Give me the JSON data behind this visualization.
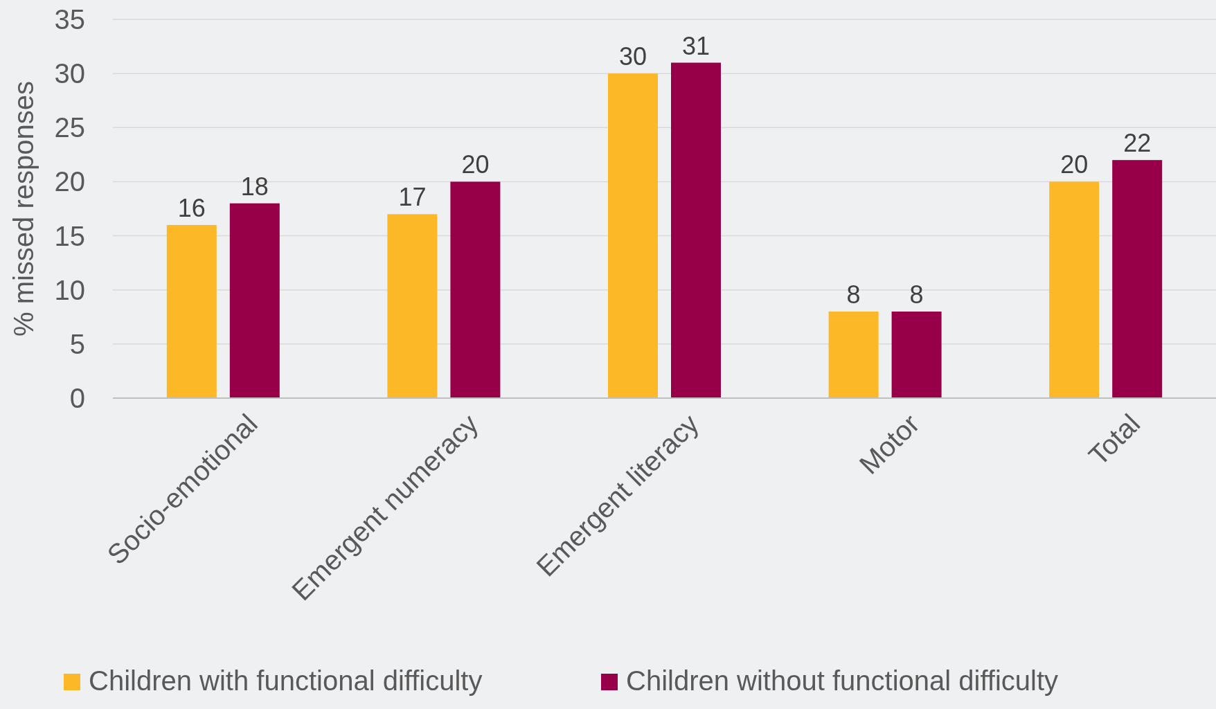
{
  "chart_data": {
    "type": "bar",
    "ylabel": "% missed responses",
    "categories": [
      "Socio-emotional",
      "Emergent numeracy",
      "Emergent literacy",
      "Motor",
      "Total"
    ],
    "series": [
      {
        "name": "Children with functional difficulty",
        "color": "#fdb827",
        "values": [
          16,
          17,
          30,
          8,
          20
        ]
      },
      {
        "name": "Children without functional difficulty",
        "color": "#970049",
        "values": [
          18,
          20,
          31,
          8,
          22
        ]
      }
    ],
    "ylim": [
      0,
      35
    ],
    "yticks": [
      0,
      5,
      10,
      15,
      20,
      25,
      30,
      35
    ],
    "grid": "y",
    "legend": "bottom",
    "data_labels": true
  }
}
